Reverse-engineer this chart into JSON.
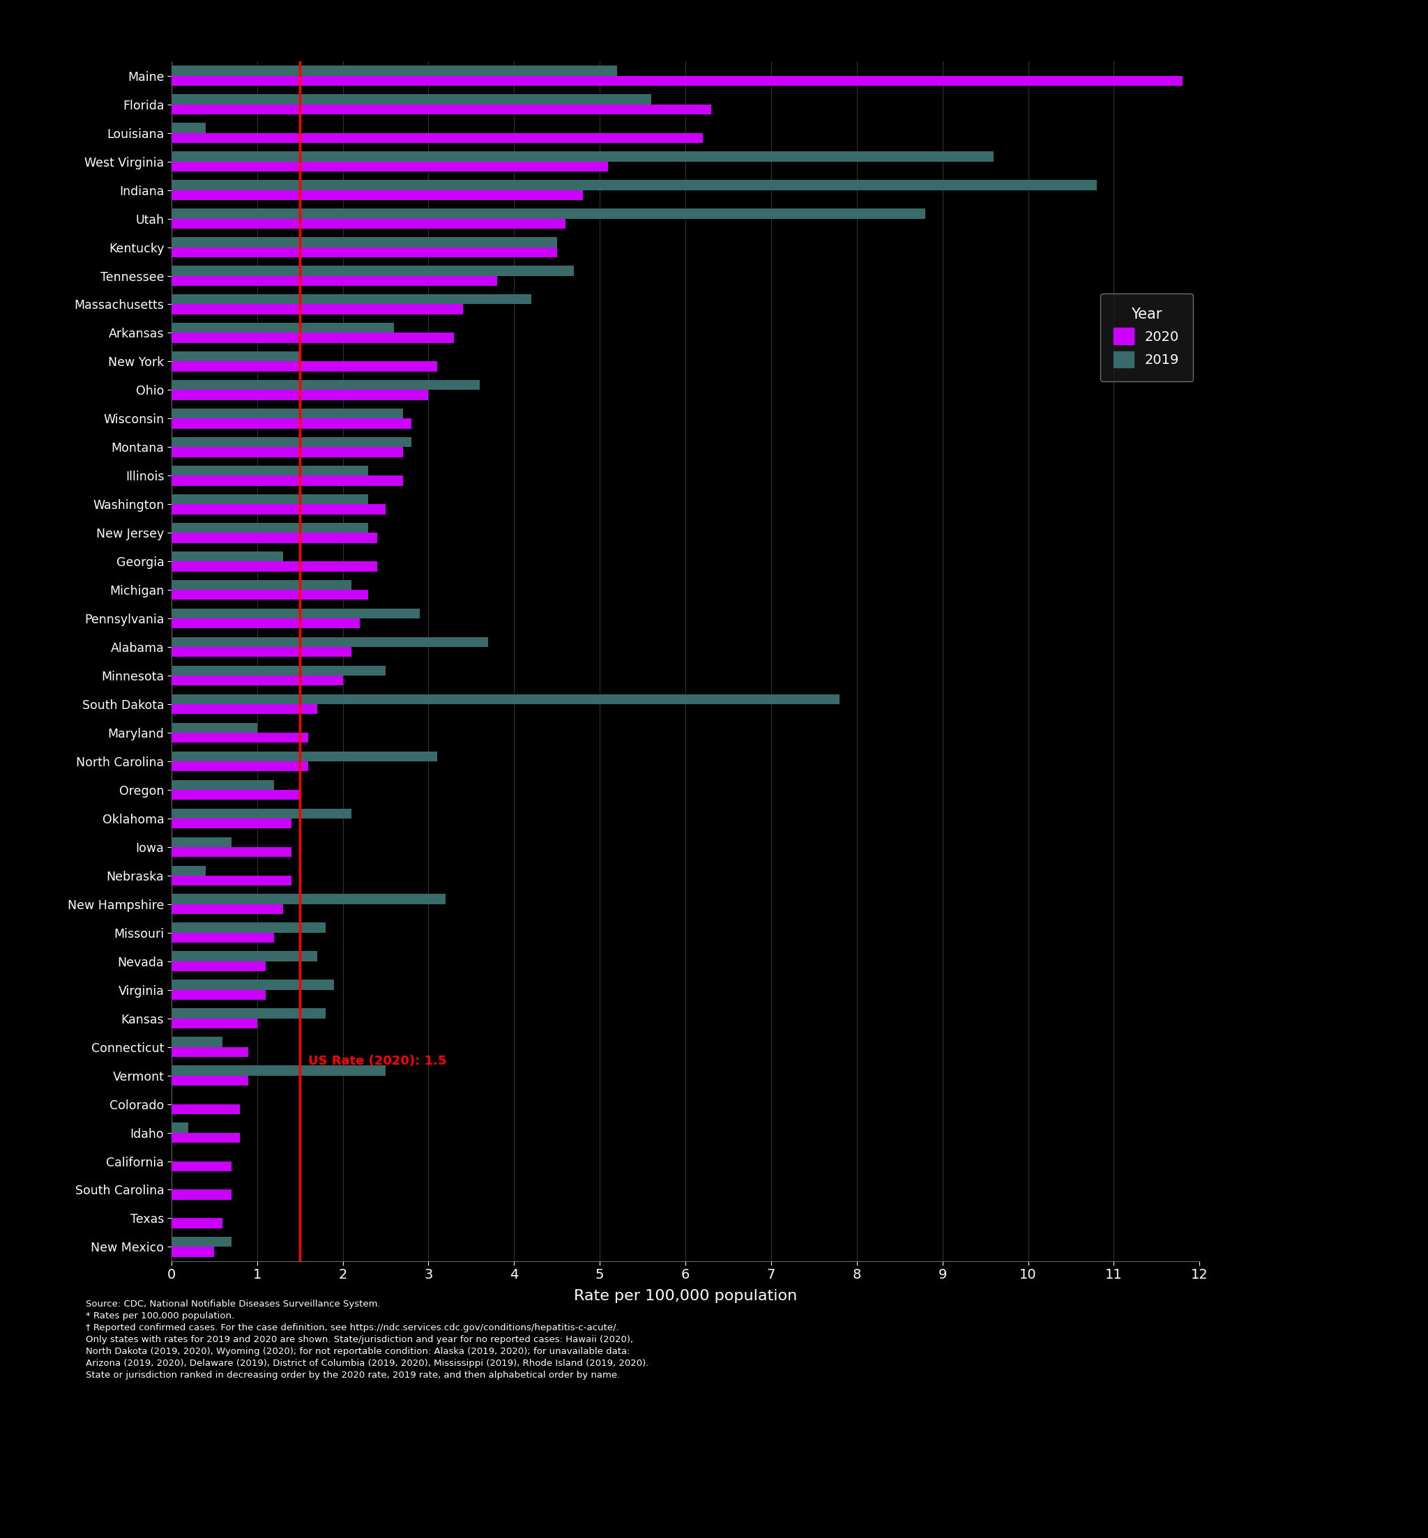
{
  "states": [
    "Maine",
    "Florida",
    "Louisiana",
    "West Virginia",
    "Indiana",
    "Utah",
    "Kentucky",
    "Tennessee",
    "Massachusetts",
    "Arkansas",
    "New York",
    "Ohio",
    "Wisconsin",
    "Montana",
    "Illinois",
    "Washington",
    "New Jersey",
    "Georgia",
    "Michigan",
    "Pennsylvania",
    "Alabama",
    "Minnesota",
    "South Dakota",
    "Maryland",
    "North Carolina",
    "Oregon",
    "Oklahoma",
    "Iowa",
    "Nebraska",
    "New Hampshire",
    "Missouri",
    "Nevada",
    "Virginia",
    "Kansas",
    "Connecticut",
    "Vermont",
    "Colorado",
    "Idaho",
    "California",
    "South Carolina",
    "Texas",
    "New Mexico"
  ],
  "values_2020": [
    11.8,
    6.3,
    6.2,
    5.1,
    4.8,
    4.6,
    4.5,
    3.8,
    3.4,
    3.3,
    3.1,
    3.0,
    2.8,
    2.7,
    2.7,
    2.5,
    2.4,
    2.4,
    2.3,
    2.2,
    2.1,
    2.0,
    1.7,
    1.6,
    1.6,
    1.5,
    1.4,
    1.4,
    1.4,
    1.3,
    1.2,
    1.1,
    1.1,
    1.0,
    0.9,
    0.9,
    0.8,
    0.8,
    0.7,
    0.7,
    0.6,
    0.5
  ],
  "values_2019": [
    5.2,
    5.6,
    0.4,
    9.6,
    10.8,
    8.8,
    4.5,
    4.7,
    4.2,
    2.6,
    1.5,
    3.6,
    2.7,
    2.8,
    2.3,
    2.3,
    2.3,
    1.3,
    2.1,
    2.9,
    3.7,
    2.5,
    7.8,
    1.0,
    3.1,
    1.2,
    2.1,
    0.7,
    0.4,
    3.2,
    1.8,
    1.7,
    1.9,
    1.8,
    0.6,
    2.5,
    0.0,
    0.2,
    0.0,
    0.0,
    0.0,
    0.7
  ],
  "us_rate_2020": 1.5,
  "us_rate_label": "US Rate (2020): 1.5",
  "color_2020": "#CC00FF",
  "color_2019": "#3a6b6b",
  "bar_height": 0.35,
  "background_color": "#000000",
  "text_color": "#ffffff",
  "xlabel": "Rate per 100,000 population",
  "xlim": [
    0,
    12
  ],
  "xticks": [
    0,
    1,
    2,
    3,
    4,
    5,
    6,
    7,
    8,
    9,
    10,
    11,
    12
  ],
  "legend_title": "Year",
  "legend_labels": [
    "2020",
    "2019"
  ],
  "footer_lines": [
    "Source: CDC, National Notifiable Diseases Surveillance System.",
    "* Rates per 100,000 population.",
    "† Reported confirmed cases. For the case definition, see https://ndc.services.cdc.gov/conditions/hepatitis‑c‑acute/.",
    "Only states with rates for 2019 and 2020 are shown. State/jurisdiction and year for no reported cases: Hawaii (2020),",
    "North Dakota (2019, 2020), Wyoming (2020); for not reportable condition: Alaska (2019, 2020); for unavailable data:",
    "Arizona (2019, 2020), Delaware (2019), District of Columbia (2019, 2020), Mississippi (2019), Rhode Island (2019, 2020).",
    "State or jurisdiction ranked in decreasing order by the 2020 rate, 2019 rate, and then alphabetical order by name."
  ]
}
